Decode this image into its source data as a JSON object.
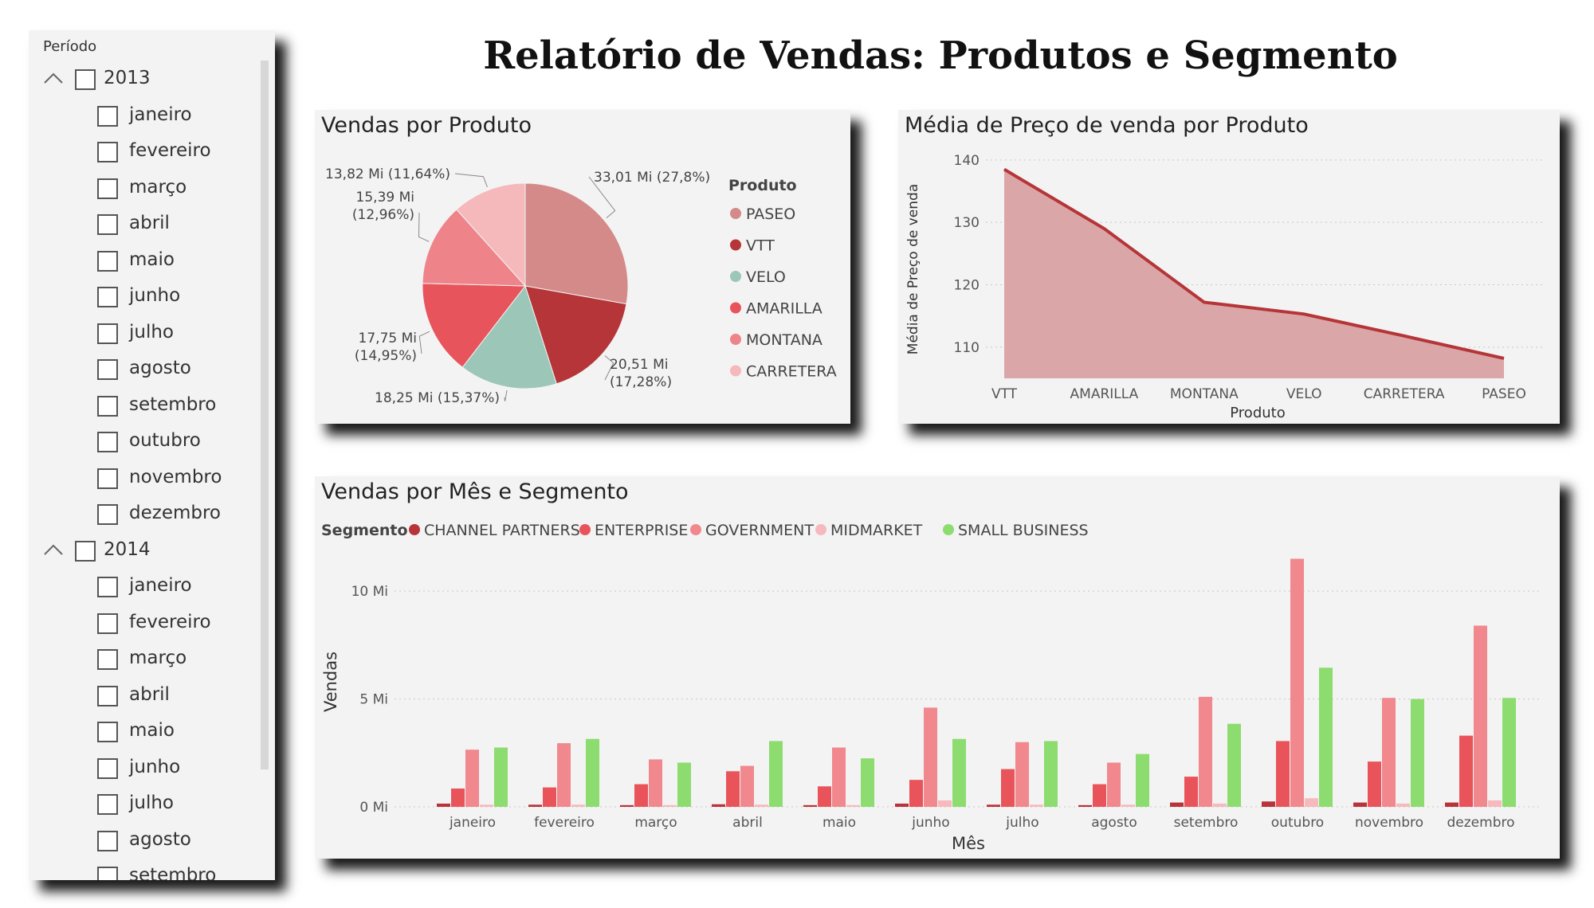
{
  "report_title": "Relatório de Vendas: Produtos e Segmento",
  "slicer": {
    "title": "Período",
    "years": [
      {
        "label": "2013",
        "months": [
          "janeiro",
          "fevereiro",
          "março",
          "abril",
          "maio",
          "junho",
          "julho",
          "agosto",
          "setembro",
          "outubro",
          "novembro",
          "dezembro"
        ]
      },
      {
        "label": "2014",
        "months": [
          "janeiro",
          "fevereiro",
          "março",
          "abril",
          "maio",
          "junho",
          "julho",
          "agosto",
          "setembro"
        ]
      }
    ]
  },
  "colors": {
    "PASEO": "#d48a89",
    "VTT": "#b53538",
    "VELO": "#9cc7b8",
    "AMARILLA": "#e8545b",
    "MONTANA": "#ee848a",
    "CARRETERA": "#f5b8bb",
    "CHANNEL PARTNERS": "#b8333a",
    "ENTERPRISE": "#e9545b",
    "GOVERNMENT": "#f0888d",
    "MIDMARKET": "#f6b9bd",
    "SMALL BUSINESS": "#8ddc6f",
    "area_fill": "#dba6a8",
    "area_line": "#b53538"
  },
  "chart_data": [
    {
      "type": "pie",
      "title": "Vendas por Produto",
      "legend_title": "Produto",
      "legend_position": "right",
      "slices": [
        {
          "name": "PASEO",
          "value": 33.01,
          "label": "33,01 Mi (27,8%)"
        },
        {
          "name": "VTT",
          "value": 20.51,
          "label": "20,51 Mi (17,28%)"
        },
        {
          "name": "VELO",
          "value": 18.25,
          "label": "18,25 Mi (15,37%)"
        },
        {
          "name": "AMARILLA",
          "value": 17.75,
          "label": "17,75 Mi (14,95%)"
        },
        {
          "name": "MONTANA",
          "value": 15.39,
          "label": "15,39 Mi (12,96%)"
        },
        {
          "name": "CARRETERA",
          "value": 13.82,
          "label": "13,82 Mi (11,64%)"
        }
      ]
    },
    {
      "type": "area",
      "title": "Média de Preço de venda por Produto",
      "xlabel": "Produto",
      "ylabel": "Média de Preço de venda",
      "categories": [
        "VTT",
        "AMARILLA",
        "MONTANA",
        "VELO",
        "CARRETERA",
        "PASEO"
      ],
      "values": [
        138.5,
        129.0,
        117.2,
        115.3,
        111.8,
        108.2
      ],
      "ylim": [
        105,
        141
      ],
      "yticks": [
        110,
        120,
        130,
        140
      ],
      "grid": true
    },
    {
      "type": "bar",
      "title": "Vendas por Mês e Segmento",
      "legend_title": "Segmento",
      "legend_position": "top-left",
      "xlabel": "Mês",
      "ylabel": "Vendas",
      "categories": [
        "janeiro",
        "fevereiro",
        "março",
        "abril",
        "maio",
        "junho",
        "julho",
        "agosto",
        "setembro",
        "outubro",
        "novembro",
        "dezembro"
      ],
      "ylim": [
        0,
        12
      ],
      "yticks": [
        {
          "value": 0,
          "label": "0 Mi"
        },
        {
          "value": 5,
          "label": "5 Mi"
        },
        {
          "value": 10,
          "label": "10 Mi"
        }
      ],
      "grid": true,
      "series": [
        {
          "name": "CHANNEL PARTNERS",
          "values": [
            0.15,
            0.1,
            0.08,
            0.12,
            0.08,
            0.15,
            0.1,
            0.08,
            0.2,
            0.25,
            0.2,
            0.2
          ]
        },
        {
          "name": "ENTERPRISE",
          "values": [
            0.85,
            0.9,
            1.05,
            1.65,
            0.95,
            1.25,
            1.75,
            1.05,
            1.4,
            3.05,
            2.1,
            3.3
          ]
        },
        {
          "name": "GOVERNMENT",
          "values": [
            2.65,
            2.95,
            2.2,
            1.9,
            2.75,
            4.6,
            3.0,
            2.05,
            5.1,
            11.5,
            5.05,
            8.4
          ]
        },
        {
          "name": "MIDMARKET",
          "values": [
            0.1,
            0.1,
            0.08,
            0.1,
            0.08,
            0.3,
            0.1,
            0.1,
            0.15,
            0.4,
            0.15,
            0.3
          ]
        },
        {
          "name": "SMALL BUSINESS",
          "values": [
            2.75,
            3.15,
            2.05,
            3.05,
            2.25,
            3.15,
            3.05,
            2.45,
            3.85,
            6.45,
            5.0,
            5.05
          ]
        }
      ]
    }
  ]
}
